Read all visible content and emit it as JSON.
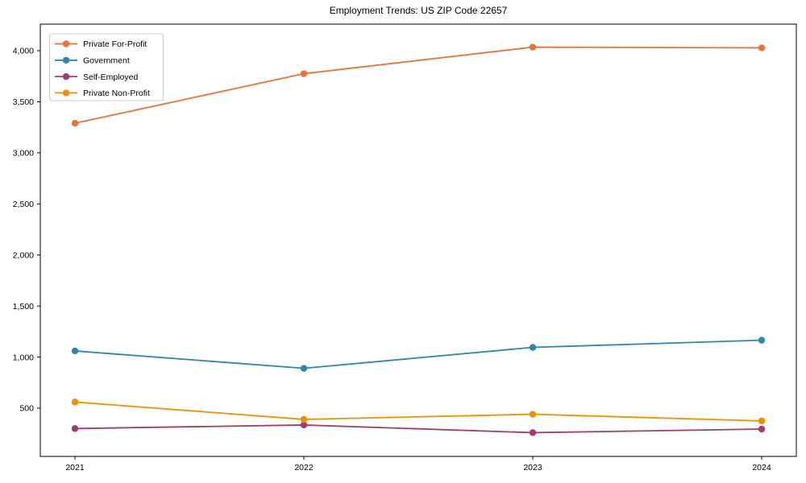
{
  "chart_data": {
    "type": "line",
    "title": "Employment Trends: US ZIP Code 22657",
    "categories": [
      "2021",
      "2022",
      "2023",
      "2024"
    ],
    "series": [
      {
        "name": "Private For-Profit",
        "color": "#E8743B",
        "values": [
          3290,
          3775,
          4035,
          4028
        ]
      },
      {
        "name": "Government",
        "color": "#2E86AB",
        "values": [
          1060,
          890,
          1095,
          1165
        ]
      },
      {
        "name": "Self-Employed",
        "color": "#A23B72",
        "values": [
          300,
          335,
          260,
          295
        ]
      },
      {
        "name": "Private Non-Profit",
        "color": "#F18F01",
        "values": [
          560,
          390,
          440,
          375
        ]
      }
    ],
    "xlabel": "",
    "ylabel": "",
    "ylim": [
      27,
      4260
    ],
    "yticks": [
      500,
      1000,
      1500,
      2000,
      2500,
      3000,
      3500,
      4000
    ],
    "ytick_labels": [
      "500",
      "1,000",
      "1,500",
      "2,000",
      "2,500",
      "3,000",
      "3,500",
      "4,000"
    ],
    "grid": false,
    "legend_position": "upper left",
    "marker": "o",
    "frame_color": "#000000",
    "legend_border_color": "#cccccc",
    "legend_background": "#ffffff"
  }
}
